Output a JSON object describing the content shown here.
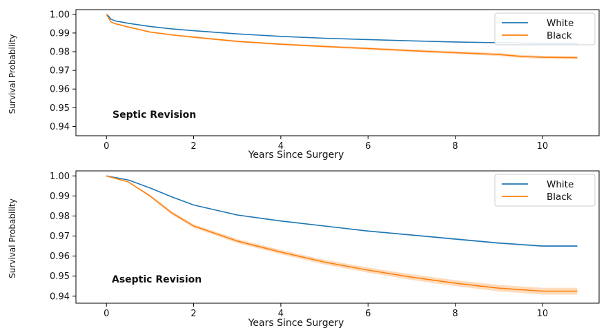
{
  "chart_data": [
    {
      "type": "line",
      "annotation": "Septic Revision",
      "xlabel": "Years Since Surgery",
      "ylabel": "Survival Probability",
      "xlim": [
        -0.7,
        11.3
      ],
      "ylim": [
        0.935,
        1.0025
      ],
      "xticks": [
        0,
        2,
        4,
        6,
        8,
        10
      ],
      "yticks": [
        0.94,
        0.95,
        0.96,
        0.97,
        0.98,
        0.99,
        1.0
      ],
      "ytick_labels": [
        "0.94",
        "0.95",
        "0.96",
        "0.97",
        "0.98",
        "0.99",
        "1.00"
      ],
      "legend_position": "top-right",
      "series": [
        {
          "name": "White",
          "color": "#1f77b4",
          "x": [
            0,
            0.05,
            0.1,
            0.2,
            0.5,
            1,
            1.5,
            2,
            3,
            4,
            5,
            6,
            7,
            8,
            9,
            10,
            10.8
          ],
          "y": [
            1.0,
            0.999,
            0.9975,
            0.9965,
            0.9952,
            0.9935,
            0.9922,
            0.9912,
            0.9895,
            0.9882,
            0.9872,
            0.9865,
            0.9858,
            0.9852,
            0.9848,
            0.9845,
            0.9844
          ],
          "ci_halfwidth": [
            0,
            0,
            0,
            0.0001,
            0.0001,
            0.0001,
            0.0001,
            0.0001,
            0.0002,
            0.0002,
            0.0002,
            0.0002,
            0.0002,
            0.0002,
            0.0002,
            0.0002,
            0.0002
          ]
        },
        {
          "name": "Black",
          "color": "#ff7f0e",
          "x": [
            0,
            0.05,
            0.1,
            0.2,
            0.5,
            1,
            1.5,
            2,
            3,
            4,
            5,
            6,
            7,
            8,
            9,
            9.5,
            10,
            10.8
          ],
          "y": [
            1.0,
            0.998,
            0.996,
            0.995,
            0.9932,
            0.9905,
            0.989,
            0.9878,
            0.9855,
            0.984,
            0.9828,
            0.9817,
            0.9805,
            0.9795,
            0.9785,
            0.9775,
            0.977,
            0.9768
          ],
          "ci_halfwidth": [
            0,
            0.0002,
            0.0003,
            0.0003,
            0.0004,
            0.0004,
            0.0004,
            0.0005,
            0.0005,
            0.0005,
            0.0006,
            0.0006,
            0.0007,
            0.0007,
            0.0008,
            0.0008,
            0.0008,
            0.0008
          ]
        }
      ]
    },
    {
      "type": "line",
      "annotation": "Aseptic Revision",
      "xlabel": "Years Since Surgery",
      "ylabel": "Survival Probability",
      "xlim": [
        -0.7,
        11.3
      ],
      "ylim": [
        0.9365,
        1.0025
      ],
      "xticks": [
        0,
        2,
        4,
        6,
        8,
        10
      ],
      "yticks": [
        0.94,
        0.95,
        0.96,
        0.97,
        0.98,
        0.99,
        1.0
      ],
      "ytick_labels": [
        "0.94",
        "0.95",
        "0.96",
        "0.97",
        "0.98",
        "0.99",
        "1.00"
      ],
      "legend_position": "top-right",
      "series": [
        {
          "name": "White",
          "color": "#1f77b4",
          "x": [
            0,
            0.5,
            1,
            1.5,
            2,
            3,
            4,
            5,
            6,
            7,
            8,
            9,
            10,
            10.8
          ],
          "y": [
            1.0,
            0.998,
            0.994,
            0.9895,
            0.9855,
            0.9805,
            0.9775,
            0.975,
            0.9725,
            0.9705,
            0.9685,
            0.9665,
            0.965,
            0.965
          ],
          "ci_halfwidth": [
            0,
            0.0001,
            0.0002,
            0.0002,
            0.0002,
            0.0003,
            0.0003,
            0.0003,
            0.0003,
            0.0003,
            0.0004,
            0.0004,
            0.0004,
            0.0004
          ]
        },
        {
          "name": "Black",
          "color": "#ff7f0e",
          "x": [
            0,
            0.5,
            1,
            1.5,
            2,
            3,
            4,
            5,
            6,
            7,
            8,
            9,
            10,
            10.8
          ],
          "y": [
            1.0,
            0.997,
            0.99,
            0.9815,
            0.975,
            0.9675,
            0.962,
            0.957,
            0.953,
            0.9495,
            0.9465,
            0.944,
            0.9425,
            0.9425
          ],
          "ci_halfwidth": [
            0,
            0.0003,
            0.0006,
            0.0008,
            0.0009,
            0.001,
            0.0011,
            0.0012,
            0.0013,
            0.0014,
            0.0015,
            0.0016,
            0.0017,
            0.0017
          ]
        }
      ]
    }
  ]
}
